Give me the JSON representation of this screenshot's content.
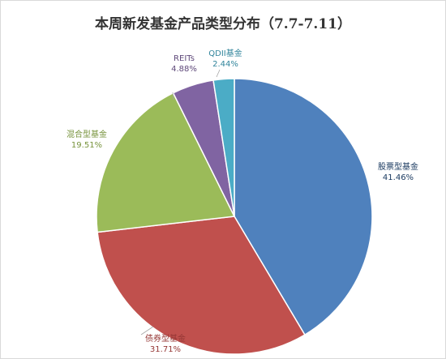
{
  "chart_data": {
    "type": "pie",
    "title": "本周新发基金产品类型分布（7.7-7.11）",
    "start_angle_deg": 0,
    "direction": "clockwise",
    "slices": [
      {
        "name": "股票型基金",
        "value": 41.46,
        "label": "41.46%",
        "color": "#4f81bd"
      },
      {
        "name": "债券型基金",
        "value": 31.71,
        "label": "31.71%",
        "color": "#c0504d"
      },
      {
        "name": "混合型基金",
        "value": 19.51,
        "label": "19.51%",
        "color": "#9bbb59"
      },
      {
        "name": "REITs",
        "value": 4.88,
        "label": "4.88%",
        "color": "#8064a2"
      },
      {
        "name": "QDII基金",
        "value": 2.44,
        "label": "2.44%",
        "color": "#4bacc6"
      }
    ],
    "legend": "none",
    "label_position": "outside-end"
  }
}
